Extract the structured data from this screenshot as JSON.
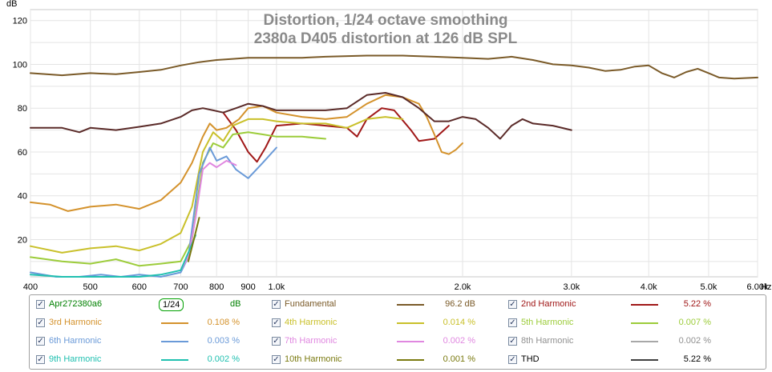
{
  "chart_data": {
    "type": "line",
    "title": "Distortion, 1/24 octave smoothing",
    "subtitle": "2380a D405 distortion at 126 dB SPL",
    "ylabel": "dB",
    "xlabel": "Hz",
    "xscale": "log",
    "xlim": [
      400,
      6000
    ],
    "ylim": [
      3,
      125
    ],
    "grid": true,
    "yticks": [
      20,
      40,
      60,
      80,
      100,
      120
    ],
    "xticks": [
      {
        "v": 400,
        "label": "400"
      },
      {
        "v": 500,
        "label": "500"
      },
      {
        "v": 600,
        "label": "600"
      },
      {
        "v": 700,
        "label": "700"
      },
      {
        "v": 800,
        "label": "800"
      },
      {
        "v": 900,
        "label": "900"
      },
      {
        "v": 1000,
        "label": "1.0k"
      },
      {
        "v": 2000,
        "label": "2.0k"
      },
      {
        "v": 3000,
        "label": "3.0k"
      },
      {
        "v": 4000,
        "label": "4.0k"
      },
      {
        "v": 5000,
        "label": "5.0k"
      },
      {
        "v": 6000,
        "label": "6.00k"
      }
    ],
    "series": [
      {
        "name": "Fundamental",
        "color": "#7a5a28",
        "x": [
          400,
          450,
          500,
          550,
          600,
          650,
          700,
          750,
          800,
          850,
          900,
          1000,
          1100,
          1200,
          1400,
          1600,
          1800,
          2000,
          2200,
          2400,
          2600,
          2800,
          3000,
          3200,
          3400,
          3600,
          3800,
          4000,
          4200,
          4400,
          4600,
          4800,
          5000,
          5200,
          5500,
          6000
        ],
        "y": [
          96,
          95,
          96,
          95.5,
          96.5,
          97.5,
          99.5,
          101,
          102,
          102.5,
          103,
          103,
          103,
          103.5,
          104,
          104,
          103.5,
          103,
          102.5,
          103.5,
          102,
          100,
          99.5,
          98.5,
          97,
          97.5,
          99,
          99.5,
          96,
          94,
          96.5,
          98,
          96,
          94,
          93.5,
          94
        ]
      },
      {
        "name": "2nd Harmonic",
        "color": "#a01818",
        "x": [
          820,
          860,
          900,
          930,
          960,
          1000,
          1100,
          1200,
          1300,
          1350,
          1400,
          1480,
          1550,
          1650,
          1700,
          1800,
          1900
        ],
        "y": [
          78,
          70,
          60,
          55.5,
          62,
          72,
          73,
          72,
          71,
          67,
          75,
          80,
          79,
          70,
          65,
          66,
          72
        ]
      },
      {
        "name": "3rd Harmonic",
        "color": "#d4922c",
        "x": [
          400,
          430,
          460,
          500,
          550,
          600,
          650,
          700,
          730,
          760,
          780,
          800,
          830,
          870,
          900,
          950,
          1000,
          1100,
          1200,
          1300,
          1400,
          1500,
          1600,
          1700,
          1750,
          1800,
          1850,
          1900,
          1950,
          2000
        ],
        "y": [
          37,
          36,
          33,
          35,
          36,
          34,
          38,
          46,
          55,
          67,
          73,
          70,
          71,
          75,
          80,
          81,
          78,
          76,
          75,
          76,
          82,
          86,
          85,
          82,
          76,
          68,
          60,
          59,
          61,
          64
        ]
      },
      {
        "name": "4th Harmonic",
        "color": "#c9c02a",
        "x": [
          400,
          450,
          500,
          550,
          600,
          650,
          700,
          730,
          760,
          790,
          820,
          850,
          900,
          950,
          1000,
          1100,
          1200,
          1300,
          1400,
          1500,
          1600
        ],
        "y": [
          17,
          14,
          16,
          17,
          15,
          18,
          23,
          35,
          60,
          69,
          65,
          72,
          75,
          75,
          74,
          73,
          73,
          71,
          75,
          76,
          75
        ]
      },
      {
        "name": "5th Harmonic",
        "color": "#9ccc3a",
        "x": [
          400,
          450,
          500,
          550,
          600,
          650,
          700,
          730,
          760,
          790,
          820,
          850,
          900,
          950,
          1000,
          1100,
          1200
        ],
        "y": [
          12,
          10,
          9,
          11,
          8,
          9,
          10,
          20,
          55,
          64,
          62,
          68,
          69,
          68,
          67,
          67,
          66
        ]
      },
      {
        "name": "6th Harmonic",
        "color": "#6a9ad8",
        "x": [
          400,
          440,
          480,
          520,
          560,
          600,
          650,
          700,
          720,
          750,
          780,
          800,
          830,
          860,
          900,
          950,
          1000
        ],
        "y": [
          5,
          3,
          3,
          4,
          3,
          4,
          3,
          5,
          12,
          50,
          62,
          56,
          58,
          52,
          48,
          55,
          62
        ]
      },
      {
        "name": "7th Harmonic",
        "color": "#e088e0",
        "x": [
          700,
          720,
          740,
          760,
          780,
          800,
          830,
          860
        ],
        "y": [
          6,
          12,
          30,
          52,
          55,
          53,
          56,
          54
        ]
      },
      {
        "name": "9th Harmonic",
        "color": "#20c0b0",
        "x": [
          400,
          450,
          500,
          550,
          600,
          650,
          700,
          720,
          740
        ],
        "y": [
          4,
          3,
          3,
          3,
          3,
          4,
          6,
          14,
          22
        ]
      },
      {
        "name": "10th Harmonic",
        "color": "#7a7a10",
        "x": [
          720,
          735,
          750
        ],
        "y": [
          10,
          20,
          30
        ]
      },
      {
        "name": "THD",
        "color": "#5a2a28",
        "x": [
          400,
          450,
          480,
          500,
          550,
          600,
          650,
          700,
          730,
          760,
          790,
          820,
          860,
          900,
          950,
          1000,
          1100,
          1200,
          1300,
          1400,
          1500,
          1600,
          1700,
          1800,
          1900,
          2000,
          2100,
          2200,
          2300,
          2400,
          2500,
          2600,
          2800,
          3000
        ],
        "y": [
          71,
          71,
          69,
          71,
          70,
          71.5,
          73,
          76,
          79,
          80,
          79,
          78,
          80,
          82,
          81,
          79,
          79,
          79,
          80,
          86,
          87,
          85,
          80,
          74,
          74,
          76,
          75,
          71,
          66,
          72,
          75,
          73,
          72,
          70
        ]
      }
    ]
  },
  "legend": {
    "file": {
      "label": "Apr272380a6",
      "smoothing": "1/24",
      "unit": "dB"
    },
    "entries": [
      {
        "label": "Fundamental",
        "value": "96.2 dB",
        "color": "#7a5a28"
      },
      {
        "label": "2nd Harmonic",
        "value": "5.22 %",
        "color": "#a01818"
      },
      {
        "label": "3rd Harmonic",
        "value": "0.108 %",
        "color": "#d4922c"
      },
      {
        "label": "4th Harmonic",
        "value": "0.014 %",
        "color": "#c9c02a"
      },
      {
        "label": "5th Harmonic",
        "value": "0.007 %",
        "color": "#9ccc3a"
      },
      {
        "label": "6th Harmonic",
        "value": "0.003 %",
        "color": "#6a9ad8"
      },
      {
        "label": "7th Harmonic",
        "value": "0.002 %",
        "color": "#e088e0"
      },
      {
        "label": "8th Harmonic",
        "value": "0.002 %",
        "color": "#a8a8a8"
      },
      {
        "label": "9th Harmonic",
        "value": "0.002 %",
        "color": "#20c0b0"
      },
      {
        "label": "10th Harmonic",
        "value": "0.001 %",
        "color": "#7a7a10"
      },
      {
        "label": "THD",
        "value": "5.22 %",
        "color": "#404040"
      }
    ]
  }
}
